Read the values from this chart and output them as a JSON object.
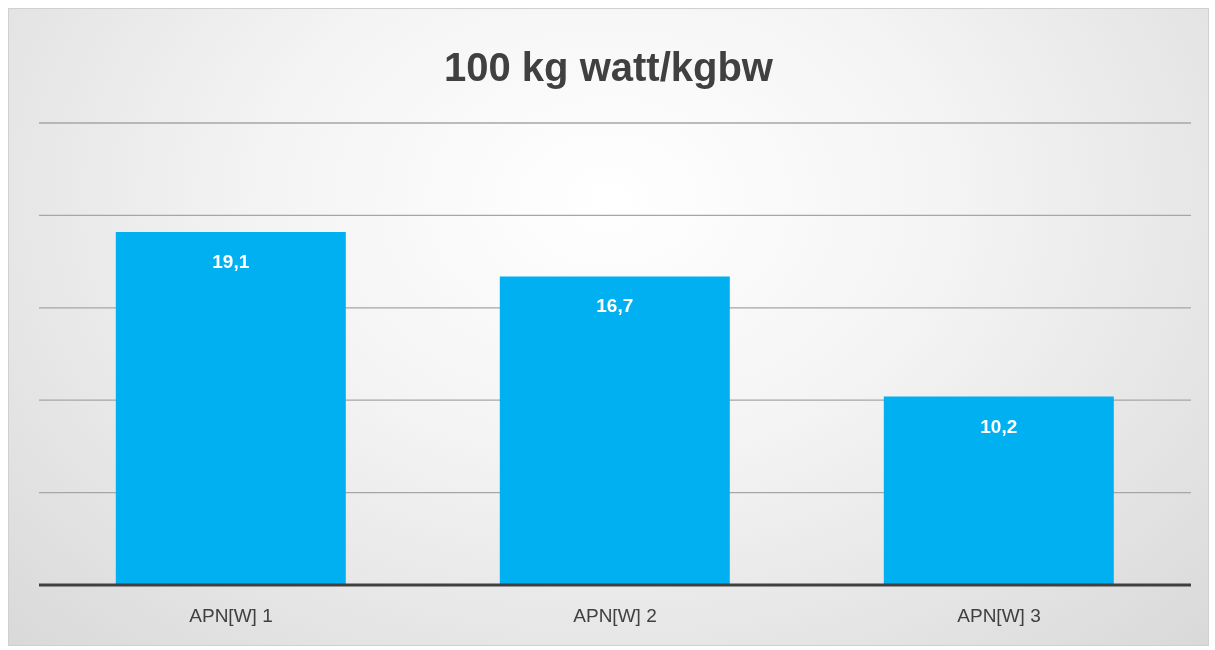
{
  "chart_data": {
    "type": "bar",
    "title": "100 kg watt/kgbw",
    "categories": [
      "APN[W] 1",
      "APN[W] 2",
      "APN[W] 3"
    ],
    "values": [
      19.1,
      16.7,
      10.2
    ],
    "color": "#00b0f0",
    "value_labels": [
      "19,1",
      "16,7",
      "10,2"
    ],
    "ylim": [
      0,
      25
    ],
    "grid": "y",
    "tick_labels": "x"
  }
}
